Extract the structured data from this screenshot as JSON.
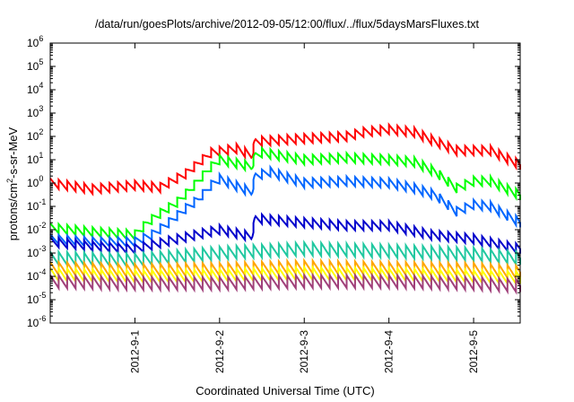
{
  "chart_data": {
    "type": "line",
    "title": "/data/run/goesPlots/archive/2012-09-05/12:00/flux/../flux/5daysMarsFluxes.txt",
    "xlabel": "Coordinated Universal Time (UTC)",
    "ylabel": {
      "pre": "protons/cm",
      "sup": "2",
      "post": "-s-sr-MeV"
    },
    "y_scale": "log",
    "ylim": [
      1e-06,
      1000000.0
    ],
    "y_ticks": [
      {
        "base": "10",
        "exp": "-6"
      },
      {
        "base": "10",
        "exp": "-5"
      },
      {
        "base": "10",
        "exp": "-4"
      },
      {
        "base": "10",
        "exp": "-3"
      },
      {
        "base": "10",
        "exp": "-2"
      },
      {
        "base": "10",
        "exp": "-1"
      },
      {
        "base": "10",
        "exp": "0"
      },
      {
        "base": "10",
        "exp": "1"
      },
      {
        "base": "10",
        "exp": "2"
      },
      {
        "base": "10",
        "exp": "3"
      },
      {
        "base": "10",
        "exp": "4"
      },
      {
        "base": "10",
        "exp": "5"
      },
      {
        "base": "10",
        "exp": "6"
      }
    ],
    "xlim": [
      0,
      5.55
    ],
    "x_ticks": [
      {
        "label": "2012-9-1",
        "day": 1
      },
      {
        "label": "2012-9-2",
        "day": 2
      },
      {
        "label": "2012-9-3",
        "day": 3
      },
      {
        "label": "2012-9-4",
        "day": 4
      },
      {
        "label": "2012-9-5",
        "day": 5
      }
    ],
    "grid": false,
    "series": [
      {
        "color": "#ff0000",
        "x": [
          0,
          0.5,
          1.0,
          1.3,
          1.6,
          1.9,
          2.2,
          2.38,
          2.42,
          3.0,
          3.5,
          3.7,
          4.0,
          4.3,
          4.55,
          4.8,
          5.2,
          5.55
        ],
        "y": [
          1.0,
          0.55,
          0.8,
          0.65,
          2.5,
          20,
          30,
          15,
          60,
          80,
          100,
          150,
          200,
          150,
          60,
          25,
          25,
          6
        ]
      },
      {
        "color": "#00ff00",
        "x": [
          0,
          0.5,
          1.0,
          1.15,
          1.3,
          1.5,
          1.65,
          1.9,
          2.0,
          2.38,
          2.42,
          2.5,
          3.0,
          3.5,
          4.0,
          4.3,
          4.55,
          4.8,
          5.0,
          5.2,
          5.55
        ],
        "y": [
          0.012,
          0.008,
          0.006,
          0.02,
          0.05,
          0.15,
          0.5,
          5,
          10,
          5,
          15,
          20,
          10,
          12,
          10,
          8,
          3,
          0.6,
          1.2,
          1.2,
          0.3
        ]
      },
      {
        "color": "#0066ff",
        "x": [
          0,
          0.5,
          1.0,
          1.2,
          1.4,
          1.6,
          1.75,
          1.9,
          2.0,
          2.38,
          2.42,
          2.6,
          3.0,
          3.5,
          4.0,
          4.3,
          4.55,
          4.8,
          5.0,
          5.2,
          5.55
        ],
        "y": [
          0.004,
          0.003,
          0.003,
          0.006,
          0.02,
          0.08,
          0.2,
          0.8,
          1.5,
          0.4,
          2.0,
          3.0,
          1.0,
          1.2,
          1.0,
          0.6,
          0.3,
          0.06,
          0.12,
          0.1,
          0.02
        ]
      },
      {
        "color": "#0000cc",
        "x": [
          0,
          0.5,
          1.0,
          1.5,
          2.0,
          2.38,
          2.42,
          3.0,
          3.5,
          4.0,
          4.5,
          5.0,
          5.55
        ],
        "y": [
          0.003,
          0.002,
          0.0015,
          0.004,
          0.01,
          0.005,
          0.03,
          0.02,
          0.015,
          0.015,
          0.006,
          0.004,
          0.0015
        ]
      },
      {
        "color": "#20c8a0",
        "x": [
          0,
          1.0,
          2.0,
          3.0,
          4.0,
          5.0,
          5.55
        ],
        "y": [
          0.0006,
          0.0005,
          0.001,
          0.0015,
          0.0012,
          0.0009,
          0.0006
        ]
      },
      {
        "color": "#ffa500",
        "x": [
          0,
          1.0,
          2.0,
          3.0,
          4.0,
          5.0,
          5.55
        ],
        "y": [
          0.00022,
          0.00018,
          0.0002,
          0.00025,
          0.00022,
          0.0002,
          0.00015
        ]
      },
      {
        "color": "#ffff00",
        "x": [
          0,
          1.0,
          2.0,
          3.0,
          4.0,
          5.0,
          5.55
        ],
        "y": [
          0.00012,
          0.0001,
          0.00011,
          0.00013,
          0.00012,
          0.0001,
          9e-05
        ]
      },
      {
        "color": "#a0407a",
        "x": [
          0,
          1.0,
          2.0,
          3.0,
          4.0,
          5.0,
          5.55
        ],
        "y": [
          6e-05,
          5e-05,
          5e-05,
          6e-05,
          6e-05,
          5e-05,
          4e-05
        ]
      }
    ]
  }
}
